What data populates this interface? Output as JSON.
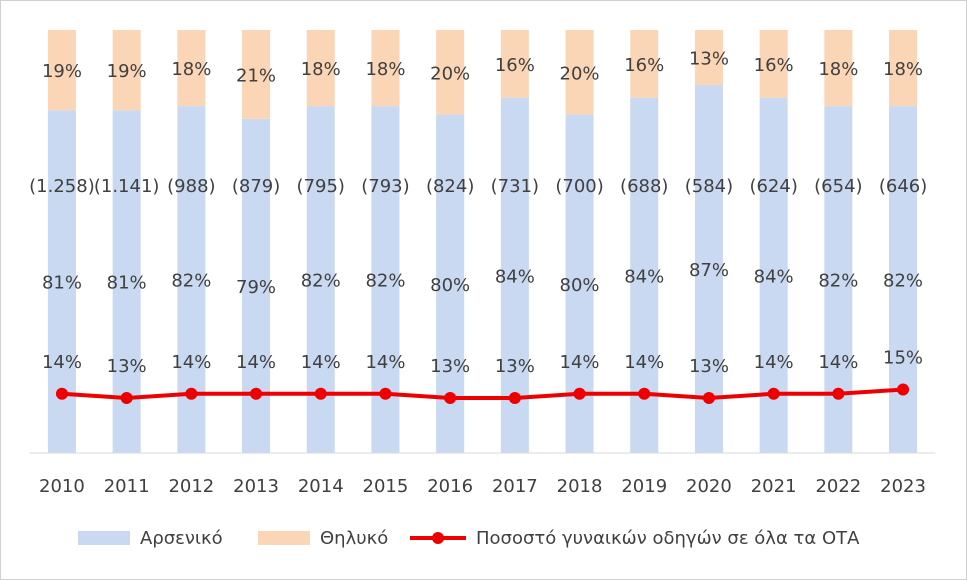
{
  "chart_data": {
    "type": "stacked-bar-line",
    "categories": [
      "2010",
      "2011",
      "2012",
      "2013",
      "2014",
      "2015",
      "2016",
      "2017",
      "2018",
      "2019",
      "2020",
      "2021",
      "2022",
      "2023"
    ],
    "series": [
      {
        "name": "Αρσενικό",
        "type": "bar",
        "color": "#c8d9f1",
        "values": [
          81,
          81,
          82,
          79,
          82,
          82,
          80,
          84,
          80,
          84,
          87,
          84,
          82,
          82
        ],
        "value_labels": [
          "81%",
          "81%",
          "82%",
          "79%",
          "82%",
          "82%",
          "80%",
          "84%",
          "80%",
          "84%",
          "87%",
          "84%",
          "82%",
          "82%"
        ]
      },
      {
        "name": "Θηλυκό",
        "type": "bar",
        "color": "#fbd6b6",
        "values": [
          19,
          19,
          18,
          21,
          18,
          18,
          20,
          16,
          20,
          16,
          13,
          16,
          18,
          18
        ],
        "value_labels": [
          "19%",
          "19%",
          "18%",
          "21%",
          "18%",
          "18%",
          "20%",
          "16%",
          "20%",
          "16%",
          "13%",
          "16%",
          "18%",
          "18%"
        ]
      },
      {
        "name": "Ποσοστό γυναικών οδηγών σε όλα τα ΟΤΑ",
        "type": "line",
        "color": "#ee0000",
        "values": [
          14,
          13,
          14,
          14,
          14,
          14,
          13,
          13,
          14,
          14,
          13,
          14,
          14,
          15
        ],
        "value_labels": [
          "14%",
          "13%",
          "14%",
          "14%",
          "14%",
          "14%",
          "13%",
          "13%",
          "14%",
          "14%",
          "13%",
          "14%",
          "14%",
          "15%"
        ]
      }
    ],
    "totals": {
      "values": [
        1258,
        1141,
        988,
        879,
        795,
        793,
        824,
        731,
        700,
        688,
        584,
        624,
        654,
        646
      ],
      "value_labels": [
        "(1.258)",
        "(1.141)",
        "(988)",
        "(879)",
        "(795)",
        "(793)",
        "(824)",
        "(731)",
        "(700)",
        "(688)",
        "(584)",
        "(624)",
        "(654)",
        "(646)"
      ]
    },
    "ylim": [
      0,
      100
    ]
  }
}
